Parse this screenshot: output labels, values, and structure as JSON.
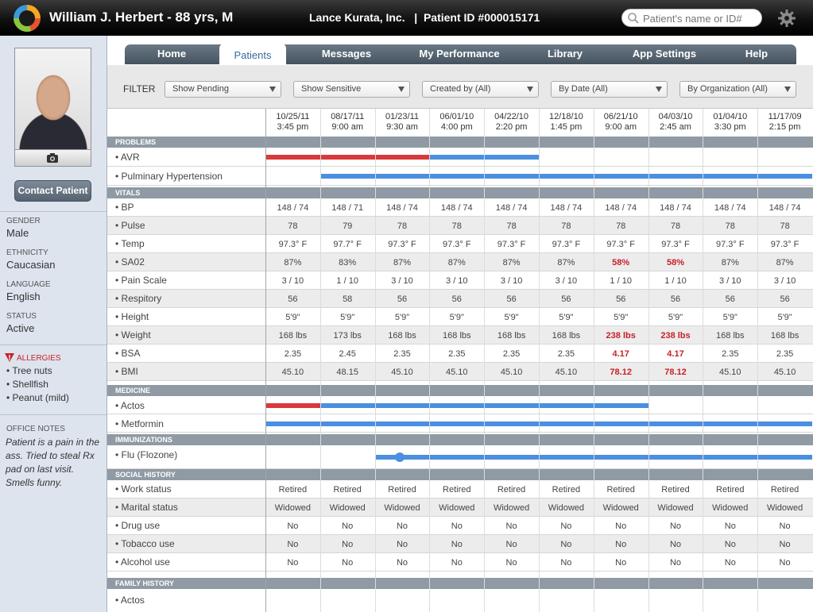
{
  "header": {
    "patient_title": "William J. Herbert - 88 yrs, M",
    "org_info": "Lance Kurata, Inc.   |  Patient ID #000015171",
    "search_placeholder": "Patient's name or ID#"
  },
  "sidebar": {
    "contact_label": "Contact Patient",
    "fields": [
      {
        "label": "GENDER",
        "value": "Male"
      },
      {
        "label": "ETHNICITY",
        "value": "Caucasian"
      },
      {
        "label": "LANGUAGE",
        "value": "English"
      },
      {
        "label": "STATUS",
        "value": "Active"
      }
    ],
    "allergies_label": "ALLERGIES",
    "allergies": [
      "• Tree nuts",
      "• Shellfish",
      "• Peanut (mild)"
    ],
    "notes_label": "OFFICE NOTES",
    "notes_text": "Patient is a pain in the ass. Tried to steal Rx pad on last visit. Smells funny."
  },
  "nav": {
    "tabs": [
      {
        "label": "Home"
      },
      {
        "label": "Patients",
        "active": true
      },
      {
        "label": "Messages"
      },
      {
        "label": "My Performance"
      },
      {
        "label": "Library"
      },
      {
        "label": "App Settings"
      },
      {
        "label": "Help"
      }
    ]
  },
  "filter": {
    "label": "FILTER",
    "dropdowns": [
      "Show Pending",
      "Show Sensitive",
      "Created by (All)",
      "By Date (All)",
      "By Organization (All)"
    ]
  },
  "dates": [
    {
      "date": "10/25/11",
      "time": "3:45 pm"
    },
    {
      "date": "08/17/11",
      "time": "9:00 am"
    },
    {
      "date": "01/23/11",
      "time": "9:30 am"
    },
    {
      "date": "06/01/10",
      "time": "4:00 pm"
    },
    {
      "date": "04/22/10",
      "time": "2:20 pm"
    },
    {
      "date": "12/18/10",
      "time": "1:45 pm"
    },
    {
      "date": "06/21/10",
      "time": "9:00 am"
    },
    {
      "date": "04/03/10",
      "time": "2:45 am"
    },
    {
      "date": "01/04/10",
      "time": "3:30 pm"
    },
    {
      "date": "11/17/09",
      "time": "2:15 pm"
    }
  ],
  "sections": {
    "problems": {
      "title": "PROBLEMS",
      "items": [
        {
          "label": "• AVR",
          "bars": [
            {
              "color": "red",
              "from": 0,
              "to": 3
            },
            {
              "color": "blue",
              "from": 3,
              "to": 5
            }
          ]
        },
        {
          "label": "• Pulminary Hypertension",
          "bars": [
            {
              "color": "blue",
              "from": 1,
              "to": 10
            }
          ]
        }
      ]
    },
    "vitals": {
      "title": "VITALS",
      "rows": [
        {
          "label": "• BP",
          "values": [
            "148 / 74",
            "148 / 71",
            "148 / 74",
            "148 / 74",
            "148 / 74",
            "148 / 74",
            "148 / 74",
            "148 / 74",
            "148 / 74",
            "148 / 74"
          ],
          "flags": []
        },
        {
          "label": "• Pulse",
          "values": [
            "78",
            "79",
            "78",
            "78",
            "78",
            "78",
            "78",
            "78",
            "78",
            "78"
          ],
          "flags": []
        },
        {
          "label": "• Temp",
          "values": [
            "97.3° F",
            "97.7° F",
            "97.3° F",
            "97.3° F",
            "97.3° F",
            "97.3° F",
            "97.3° F",
            "97.3° F",
            "97.3° F",
            "97.3° F"
          ],
          "flags": []
        },
        {
          "label": "• SA02",
          "values": [
            "87%",
            "83%",
            "87%",
            "87%",
            "87%",
            "87%",
            "58%",
            "58%",
            "87%",
            "87%"
          ],
          "flags": [
            6,
            7
          ]
        },
        {
          "label": "• Pain Scale",
          "values": [
            "3 / 10",
            "1 / 10",
            "3 / 10",
            "3 / 10",
            "3 / 10",
            "3 / 10",
            "1 / 10",
            "1 / 10",
            "3 / 10",
            "3 / 10"
          ],
          "flags": []
        },
        {
          "label": "• Respitory",
          "values": [
            "56",
            "58",
            "56",
            "56",
            "56",
            "56",
            "56",
            "56",
            "56",
            "56"
          ],
          "flags": []
        },
        {
          "label": "• Height",
          "values": [
            "5'9\"",
            "5'9\"",
            "5'9\"",
            "5'9\"",
            "5'9\"",
            "5'9\"",
            "5'9\"",
            "5'9\"",
            "5'9\"",
            "5'9\""
          ],
          "flags": []
        },
        {
          "label": "• Weight",
          "values": [
            "168 lbs",
            "173 lbs",
            "168 lbs",
            "168 lbs",
            "168 lbs",
            "168 lbs",
            "238 lbs",
            "238 lbs",
            "168 lbs",
            "168 lbs"
          ],
          "flags": [
            6,
            7
          ]
        },
        {
          "label": "• BSA",
          "values": [
            "2.35",
            "2.45",
            "2.35",
            "2.35",
            "2.35",
            "2.35",
            "4.17",
            "4.17",
            "2.35",
            "2.35"
          ],
          "flags": [
            6,
            7
          ]
        },
        {
          "label": "• BMI",
          "values": [
            "45.10",
            "48.15",
            "45.10",
            "45.10",
            "45.10",
            "45.10",
            "78.12",
            "78.12",
            "45.10",
            "45.10"
          ],
          "flags": [
            6,
            7
          ]
        }
      ]
    },
    "medicine": {
      "title": "MEDICINE",
      "items": [
        {
          "label": "• Actos",
          "bars": [
            {
              "color": "red",
              "from": 0,
              "to": 1
            },
            {
              "color": "blue",
              "from": 1,
              "to": 7
            }
          ]
        },
        {
          "label": "• Metformin",
          "bars": [
            {
              "color": "blue",
              "from": 0,
              "to": 10
            }
          ]
        }
      ]
    },
    "immunizations": {
      "title": "IMMUNIZATIONS",
      "items": [
        {
          "label": "• Flu (Flozone)",
          "bars": [
            {
              "color": "blue",
              "from": 2,
              "to": 10
            }
          ],
          "dot_at": 2.45
        }
      ]
    },
    "social": {
      "title": "SOCIAL HISTORY",
      "rows": [
        {
          "label": "• Work status",
          "values": [
            "Retired",
            "Retired",
            "Retired",
            "Retired",
            "Retired",
            "Retired",
            "Retired",
            "Retired",
            "Retired",
            "Retired"
          ]
        },
        {
          "label": "• Marital status",
          "values": [
            "Widowed",
            "Widowed",
            "Widowed",
            "Widowed",
            "Widowed",
            "Widowed",
            "Widowed",
            "Widowed",
            "Widowed",
            "Widowed"
          ]
        },
        {
          "label": "• Drug use",
          "values": [
            "No",
            "No",
            "No",
            "No",
            "No",
            "No",
            "No",
            "No",
            "No",
            "No"
          ]
        },
        {
          "label": "• Tobacco use",
          "values": [
            "No",
            "No",
            "No",
            "No",
            "No",
            "No",
            "No",
            "No",
            "No",
            "No"
          ]
        },
        {
          "label": "• Alcohol use",
          "values": [
            "No",
            "No",
            "No",
            "No",
            "No",
            "No",
            "No",
            "No",
            "No",
            "No"
          ]
        }
      ]
    },
    "family": {
      "title": "FAMILY HISTORY",
      "first_label": "• Actos"
    }
  },
  "colors": {
    "flag": "#c8202a",
    "bar_red": "#d9393c",
    "bar_blue": "#4a8fe0",
    "section": "#8f9aa4",
    "nav": "#56636f"
  }
}
